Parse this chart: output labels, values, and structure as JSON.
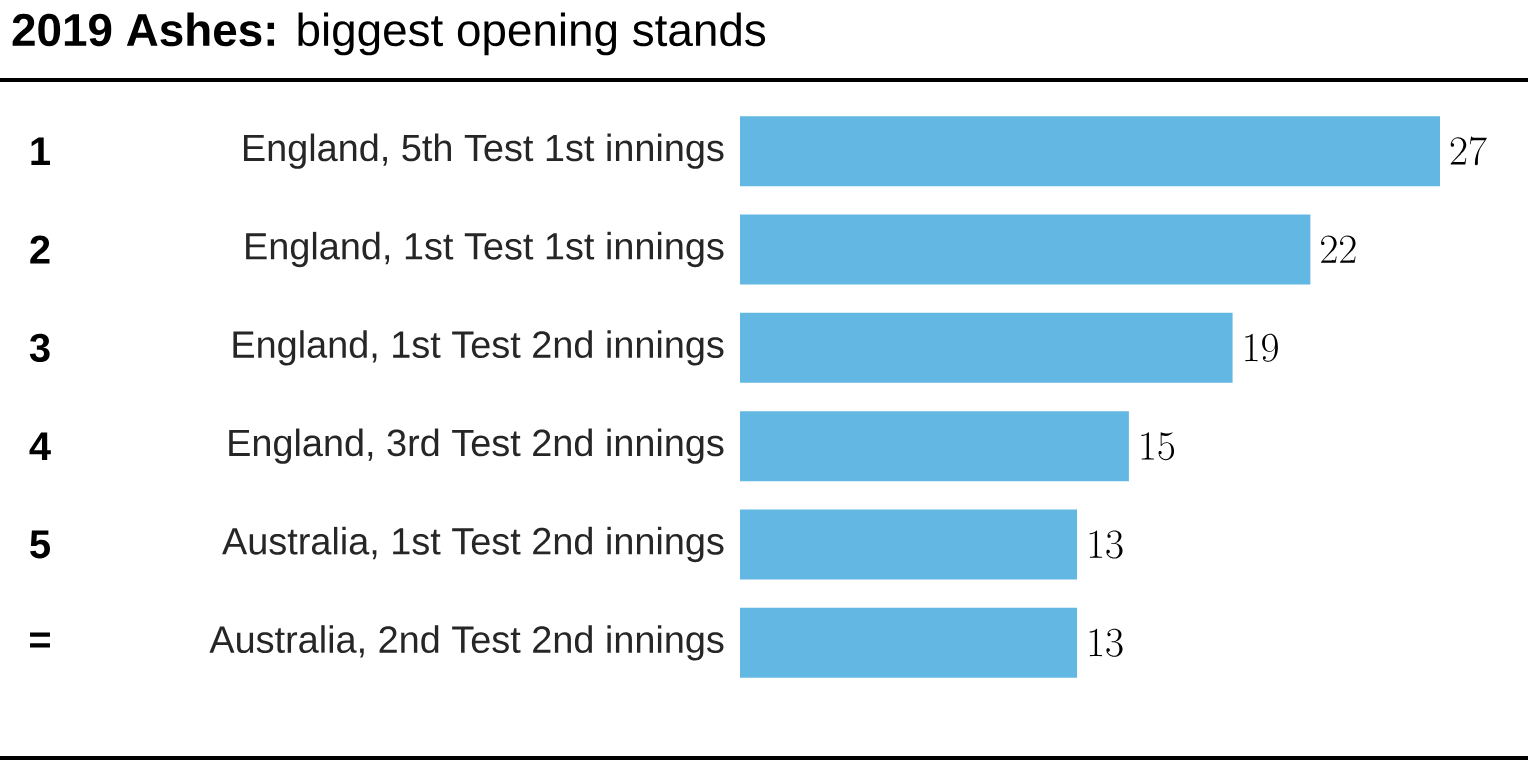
{
  "chart_data": {
    "type": "bar",
    "orientation": "horizontal",
    "title": "**2019 Ashes:** biggest opening stands",
    "categories": [
      "England, 5th Test 1st innings",
      "England, 1st Test 1st innings",
      "England, 1st Test 2nd innings",
      "England, 3rd Test 2nd innings",
      "Australia, 1st Test 2nd innings",
      "Australia, 2nd Test 2nd innings"
    ],
    "values": [
      27,
      22,
      19,
      15,
      13,
      13
    ],
    "color": "#62b8e3",
    "data_labels": true,
    "annotations": [
      "1",
      "2",
      "3",
      "4",
      "5",
      "="
    ]
  }
}
